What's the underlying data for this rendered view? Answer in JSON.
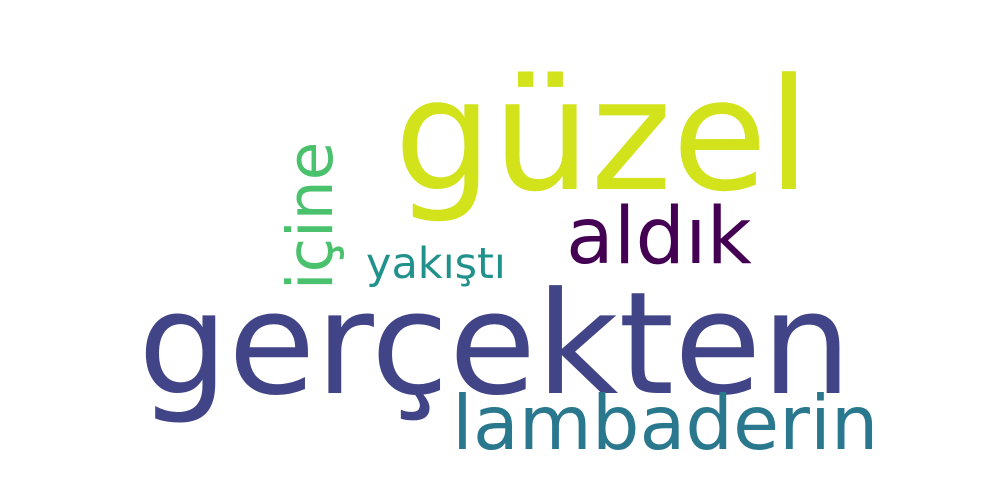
{
  "word_cloud": {
    "background": "#ffffff",
    "words": {
      "gercekten": {
        "text": "gerçekten",
        "color": "#414487"
      },
      "guzel": {
        "text": "güzel",
        "color": "#d2e21b"
      },
      "lambaderin": {
        "text": "lambaderin",
        "color": "#2a788e"
      },
      "aldik": {
        "text": "aldık",
        "color": "#440154"
      },
      "yakisti": {
        "text": "yakıştı",
        "color": "#21918c"
      },
      "icine": {
        "text": "içine",
        "color": "#4ac16d"
      }
    }
  }
}
